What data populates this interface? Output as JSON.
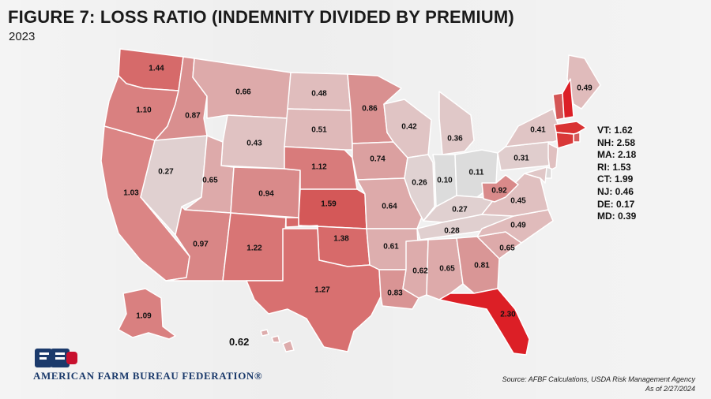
{
  "title": "FIGURE 7: LOSS RATIO (INDEMNITY DIVIDED BY PREMIUM)",
  "subtitle": "2023",
  "organization": "AMERICAN FARM BUREAU FEDERATION®",
  "source_line1": "Source: AFBF Calculations, USDA Risk Management Agency",
  "source_line2": "As of 2/27/2024",
  "hawaii_value": "0.62",
  "colors": {
    "lightest": "#dcdcdc",
    "light": "#e7cfcf",
    "mid_light": "#dcaaaa",
    "mid": "#d99a9a",
    "mid_dark": "#d98080",
    "dark": "#d45f5f",
    "darkest": "#dc1f26"
  },
  "states": {
    "WA": {
      "value": "1.44",
      "color": "#d66a6a"
    },
    "OR": {
      "value": "1.10",
      "color": "#d98080"
    },
    "CA": {
      "value": "1.03",
      "color": "#db8585"
    },
    "ID": {
      "value": "0.87",
      "color": "#d98f8f"
    },
    "NV": {
      "value": "0.27",
      "color": "#e0d0d0"
    },
    "MT": {
      "value": "0.66",
      "color": "#ddaaaa"
    },
    "WY": {
      "value": "0.43",
      "color": "#e0c2c2"
    },
    "UT": {
      "value": "0.65",
      "color": "#ddaaaa"
    },
    "AZ": {
      "value": "0.97",
      "color": "#d98686"
    },
    "CO": {
      "value": "0.94",
      "color": "#d98a8a"
    },
    "NM": {
      "value": "1.22",
      "color": "#d87575"
    },
    "ND": {
      "value": "0.48",
      "color": "#e0bdbd"
    },
    "SD": {
      "value": "0.51",
      "color": "#dfb9b9"
    },
    "NE": {
      "value": "1.12",
      "color": "#d87b7b"
    },
    "KS": {
      "value": "1.59",
      "color": "#d45858"
    },
    "OK": {
      "value": "1.38",
      "color": "#d76a6a"
    },
    "TX": {
      "value": "1.27",
      "color": "#d87070"
    },
    "MN": {
      "value": "0.86",
      "color": "#d99090"
    },
    "IA": {
      "value": "0.74",
      "color": "#dba0a0"
    },
    "MO": {
      "value": "0.64",
      "color": "#ddaaaa"
    },
    "AR": {
      "value": "0.61",
      "color": "#ddaeae"
    },
    "LA": {
      "value": "0.83",
      "color": "#d99494"
    },
    "WI": {
      "value": "0.42",
      "color": "#e0c4c4"
    },
    "IL": {
      "value": "0.26",
      "color": "#e0d2d2"
    },
    "MI": {
      "value": "0.36",
      "color": "#e0c8c8"
    },
    "IN": {
      "value": "0.10",
      "color": "#dcdcdc"
    },
    "OH": {
      "value": "0.11",
      "color": "#dcdcdc"
    },
    "KY": {
      "value": "0.27",
      "color": "#e0d0d0"
    },
    "TN": {
      "value": "0.28",
      "color": "#e0cfcf"
    },
    "MS": {
      "value": "0.62",
      "color": "#ddacac"
    },
    "AL": {
      "value": "0.65",
      "color": "#ddaaaa"
    },
    "GA": {
      "value": "0.81",
      "color": "#d99696"
    },
    "FL": {
      "value": "2.30",
      "color": "#dc1f26"
    },
    "SC": {
      "value": "0.65",
      "color": "#ddaaaa"
    },
    "NC": {
      "value": "0.49",
      "color": "#e0bbbb"
    },
    "VA": {
      "value": "0.45",
      "color": "#e0c0c0"
    },
    "WV": {
      "value": "0.92",
      "color": "#d98a8a"
    },
    "PA": {
      "value": "0.31",
      "color": "#e0cdcd"
    },
    "NY": {
      "value": "0.41",
      "color": "#e0c5c5"
    },
    "ME": {
      "value": "0.49",
      "color": "#e0bbbb"
    },
    "AK": {
      "value": "1.09",
      "color": "#d98080"
    },
    "HI": {
      "value": "0.62",
      "color": "#ddacac"
    },
    "VT": {
      "value": "1.62",
      "color": "#d45656"
    },
    "NH": {
      "value": "2.58",
      "color": "#dc1f26"
    },
    "MA": {
      "value": "2.18",
      "color": "#d93232"
    },
    "RI": {
      "value": "1.53",
      "color": "#d55c5c"
    },
    "CT": {
      "value": "1.99",
      "color": "#d93838"
    },
    "NJ": {
      "value": "0.46",
      "color": "#e0c0c0"
    },
    "DE": {
      "value": "0.17",
      "color": "#dddada"
    },
    "MD": {
      "value": "0.39",
      "color": "#e0c7c7"
    }
  },
  "northeast_list": [
    "VT: 1.62",
    "NH: 2.58",
    "MA: 2.18",
    "RI: 1.53",
    "CT: 1.99",
    "NJ: 0.46",
    "DE: 0.17",
    "MD: 0.39"
  ]
}
